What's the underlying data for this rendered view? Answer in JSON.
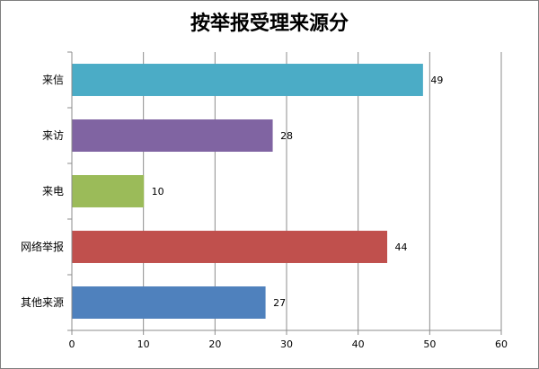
{
  "chart_data": {
    "type": "bar",
    "orientation": "horizontal",
    "title": "按举报受理来源分",
    "categories": [
      "来信",
      "来访",
      "来电",
      "网络举报",
      "其他来源"
    ],
    "values": [
      49,
      28,
      10,
      44,
      27
    ],
    "colors": [
      "#4bacc6",
      "#8064a2",
      "#9bbb59",
      "#c0504d",
      "#4f81bd"
    ],
    "xlim": [
      0,
      60
    ],
    "xticks": [
      0,
      10,
      20,
      30,
      40,
      50,
      60
    ],
    "grid": "vertical",
    "legend": "none",
    "data_labels": true
  }
}
